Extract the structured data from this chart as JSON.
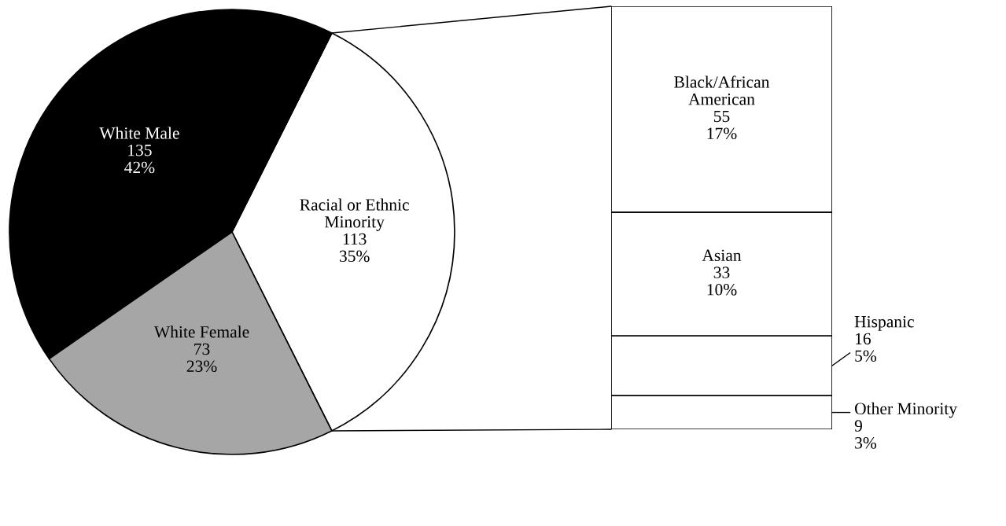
{
  "chart_data": [
    {
      "type": "pie",
      "categories": [
        "Racial or Ethnic\nMinority",
        "White Male",
        "White Female"
      ],
      "values": [
        113,
        135,
        73
      ],
      "colors": [
        "#ffffff",
        "#000000",
        "#a6a6a6"
      ],
      "value_labels": [
        "113\n35%",
        "135\n42%",
        "73\n23%"
      ],
      "legend": false
    },
    {
      "type": "bar",
      "stacked": true,
      "categories": [
        null
      ],
      "legend": false,
      "series": [
        {
          "name": "Other Minority",
          "color": "#ffffff",
          "values": [
            9
          ],
          "value_labels": [
            "9\n3%"
          ]
        },
        {
          "name": "Hispanic",
          "color": "#ffffff",
          "values": [
            16
          ],
          "value_labels": [
            "16\n5%"
          ]
        },
        {
          "name": "Asian",
          "color": "#ffffff",
          "values": [
            33
          ],
          "value_labels": [
            "33\n10%"
          ]
        },
        {
          "name": "Black/African\nAmerican",
          "color": "#ffffff",
          "values": [
            55
          ],
          "value_labels": [
            "55\n17%"
          ]
        }
      ]
    }
  ]
}
